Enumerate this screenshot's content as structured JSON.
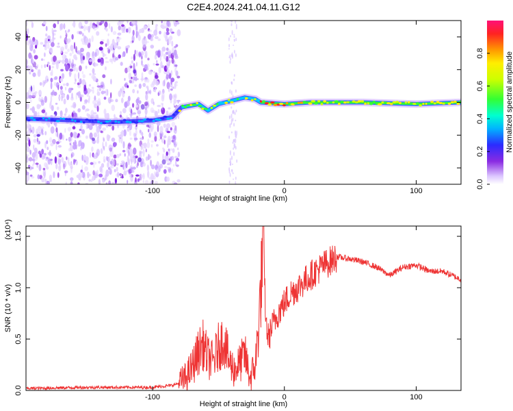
{
  "title": "C2E4.2024.241.04.11.G12",
  "spectrogram": {
    "type": "heatmap",
    "xlabel": "Height of straight line (km)",
    "ylabel": "Frequency (Hz)",
    "xlim": [
      -196,
      134
    ],
    "ylim": [
      -50,
      50
    ],
    "xticks": [
      -100,
      0,
      100
    ],
    "yticks": [
      -40,
      -20,
      0,
      20,
      40
    ],
    "noise_region_end_km": -80,
    "faint_noise_band_km": [
      -42,
      -36
    ],
    "signal_track": [
      {
        "x": -196,
        "y": -10
      },
      {
        "x": -160,
        "y": -11
      },
      {
        "x": -130,
        "y": -12
      },
      {
        "x": -100,
        "y": -11
      },
      {
        "x": -85,
        "y": -9
      },
      {
        "x": -78,
        "y": -3
      },
      {
        "x": -65,
        "y": -1
      },
      {
        "x": -58,
        "y": -5
      },
      {
        "x": -50,
        "y": -1
      },
      {
        "x": -40,
        "y": 1
      },
      {
        "x": -30,
        "y": 3
      },
      {
        "x": -22,
        "y": 2
      },
      {
        "x": -18,
        "y": 0
      },
      {
        "x": 0,
        "y": -1
      },
      {
        "x": 20,
        "y": 0
      },
      {
        "x": 60,
        "y": 0
      },
      {
        "x": 100,
        "y": -1
      },
      {
        "x": 134,
        "y": 0
      }
    ],
    "colorbar": {
      "label": "Normalized spectral amplitude",
      "range": [
        0,
        1
      ],
      "ticks": [
        0.0,
        0.2,
        0.4,
        0.6,
        0.8
      ],
      "tick_labels": [
        "0.0",
        "0.2",
        "0.4",
        "0.6",
        "0.8"
      ]
    }
  },
  "chart_data": {
    "type": "line",
    "xlabel": "Height of straight line (km)",
    "ylabel": "SNR (10 * v/v)",
    "scale_note": "(x10⁴)",
    "xlim": [
      -196,
      134
    ],
    "ylim": [
      0,
      1.6
    ],
    "xticks": [
      -100,
      0,
      100
    ],
    "yticks": [
      0.0,
      0.5,
      1.0,
      1.5
    ],
    "ytick_labels": [
      "0.0",
      "0.5",
      "1.0",
      "1.5"
    ],
    "series_color": "#ee3333",
    "x": [
      -196,
      -150,
      -100,
      -85,
      -80,
      -75,
      -70,
      -66,
      -62,
      -58,
      -54,
      -50,
      -46,
      -42,
      -38,
      -34,
      -30,
      -26,
      -22,
      -20,
      -18,
      -16,
      -14,
      -12,
      -10,
      -5,
      0,
      5,
      10,
      20,
      30,
      40,
      50,
      60,
      70,
      80,
      90,
      100,
      110,
      120,
      134
    ],
    "values": [
      0.02,
      0.03,
      0.03,
      0.05,
      0.07,
      0.12,
      0.22,
      0.35,
      0.45,
      0.32,
      0.28,
      0.42,
      0.5,
      0.28,
      0.2,
      0.26,
      0.35,
      0.12,
      0.25,
      0.55,
      0.95,
      1.45,
      0.65,
      0.5,
      0.6,
      0.75,
      0.85,
      0.95,
      1.0,
      1.12,
      1.22,
      1.3,
      1.28,
      1.25,
      1.2,
      1.12,
      1.2,
      1.22,
      1.16,
      1.16,
      1.08
    ]
  }
}
